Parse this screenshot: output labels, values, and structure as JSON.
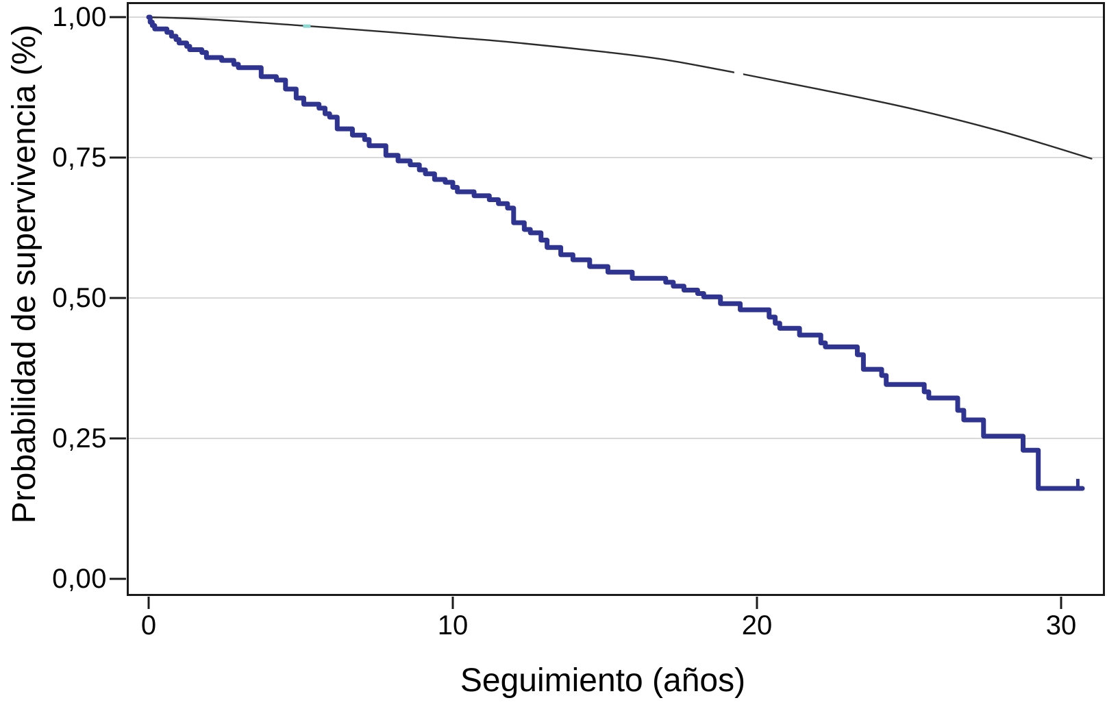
{
  "chart_data": {
    "type": "line",
    "subtype": "kaplan-meier-survival",
    "title": "",
    "xlabel": "Seguimiento (años)",
    "ylabel": "Probabilidad de supervivencia (%)",
    "xlim": [
      0,
      31.4
    ],
    "ylim": [
      0,
      1.0
    ],
    "grid": "horizontal gridlines at y ticks, light gray",
    "legend_position": "none",
    "x_ticks": [
      {
        "value": 0,
        "label": "0"
      },
      {
        "value": 10,
        "label": "10"
      },
      {
        "value": 20,
        "label": "20"
      },
      {
        "value": 30,
        "label": "30"
      }
    ],
    "y_ticks": [
      {
        "value": 1.0,
        "label": "1,00"
      },
      {
        "value": 0.75,
        "label": "0,75"
      },
      {
        "value": 0.5,
        "label": "0,50"
      },
      {
        "value": 0.25,
        "label": "0,25"
      },
      {
        "value": 0.0,
        "label": "0,00"
      }
    ],
    "series": [
      {
        "name": "expected-survival-curve",
        "style": "smooth",
        "color": "#2b2b2b",
        "width": 2.4,
        "points": [
          [
            0,
            1.0
          ],
          [
            2,
            0.996
          ],
          [
            5,
            0.985
          ],
          [
            8,
            0.973
          ],
          [
            10,
            0.964
          ],
          [
            12,
            0.955
          ],
          [
            15,
            0.938
          ],
          [
            17,
            0.924
          ],
          [
            19.4,
            0.9
          ],
          [
            22,
            0.872
          ],
          [
            25,
            0.838
          ],
          [
            28,
            0.797
          ],
          [
            31,
            0.748
          ]
        ]
      },
      {
        "name": "observed-survival-km-curve",
        "style": "step-after",
        "color": "#2f3490",
        "width": 7,
        "points": [
          [
            0,
            1.0
          ],
          [
            0.05,
            0.991
          ],
          [
            0.12,
            0.985
          ],
          [
            0.2,
            0.979
          ],
          [
            0.6,
            0.973
          ],
          [
            0.75,
            0.966
          ],
          [
            0.9,
            0.96
          ],
          [
            1.0,
            0.954
          ],
          [
            1.25,
            0.948
          ],
          [
            1.35,
            0.942
          ],
          [
            1.75,
            0.937
          ],
          [
            1.9,
            0.928
          ],
          [
            2.4,
            0.923
          ],
          [
            2.8,
            0.916
          ],
          [
            2.95,
            0.91
          ],
          [
            3.7,
            0.894
          ],
          [
            4.2,
            0.888
          ],
          [
            4.5,
            0.872
          ],
          [
            4.85,
            0.856
          ],
          [
            5.1,
            0.845
          ],
          [
            5.6,
            0.838
          ],
          [
            5.8,
            0.828
          ],
          [
            5.95,
            0.822
          ],
          [
            6.2,
            0.801
          ],
          [
            6.7,
            0.79
          ],
          [
            7.1,
            0.782
          ],
          [
            7.25,
            0.771
          ],
          [
            7.8,
            0.754
          ],
          [
            8.2,
            0.744
          ],
          [
            8.6,
            0.737
          ],
          [
            8.9,
            0.728
          ],
          [
            9.1,
            0.721
          ],
          [
            9.4,
            0.711
          ],
          [
            9.75,
            0.706
          ],
          [
            10.0,
            0.697
          ],
          [
            10.15,
            0.689
          ],
          [
            10.7,
            0.682
          ],
          [
            11.2,
            0.675
          ],
          [
            11.5,
            0.668
          ],
          [
            11.8,
            0.66
          ],
          [
            12.0,
            0.634
          ],
          [
            12.35,
            0.622
          ],
          [
            12.55,
            0.616
          ],
          [
            12.9,
            0.603
          ],
          [
            13.1,
            0.59
          ],
          [
            13.55,
            0.577
          ],
          [
            13.95,
            0.568
          ],
          [
            14.5,
            0.556
          ],
          [
            15.1,
            0.546
          ],
          [
            15.9,
            0.535
          ],
          [
            17.0,
            0.528
          ],
          [
            17.25,
            0.521
          ],
          [
            17.6,
            0.514
          ],
          [
            18.05,
            0.508
          ],
          [
            18.25,
            0.502
          ],
          [
            18.8,
            0.49
          ],
          [
            19.45,
            0.479
          ],
          [
            20.4,
            0.466
          ],
          [
            20.6,
            0.455
          ],
          [
            20.75,
            0.446
          ],
          [
            21.4,
            0.434
          ],
          [
            22.1,
            0.42
          ],
          [
            22.25,
            0.413
          ],
          [
            23.3,
            0.399
          ],
          [
            23.5,
            0.373
          ],
          [
            24.1,
            0.362
          ],
          [
            24.25,
            0.346
          ],
          [
            25.5,
            0.333
          ],
          [
            25.65,
            0.322
          ],
          [
            26.6,
            0.3
          ],
          [
            26.8,
            0.283
          ],
          [
            27.45,
            0.254
          ],
          [
            28.75,
            0.229
          ],
          [
            29.25,
            0.161
          ],
          [
            30.7,
            0.161
          ]
        ]
      }
    ],
    "censor_marks": [
      {
        "x": 5.2,
        "y": 0.984,
        "w": 11,
        "h": 5,
        "color": "#8ed8d3"
      },
      {
        "x": 19.4,
        "y": 0.9,
        "w": 13,
        "h": 7,
        "color": "#ffffff"
      },
      {
        "x": 30.55,
        "y": 0.17,
        "w": 5,
        "h": 13,
        "color": "#2f3490"
      }
    ],
    "colors": {
      "km_line": "#2f3490",
      "expected_line": "#2b2b2b",
      "grid": "#d8d8d8",
      "axis": "#1a1a1a",
      "background": "#ffffff",
      "text": "#000000"
    }
  }
}
